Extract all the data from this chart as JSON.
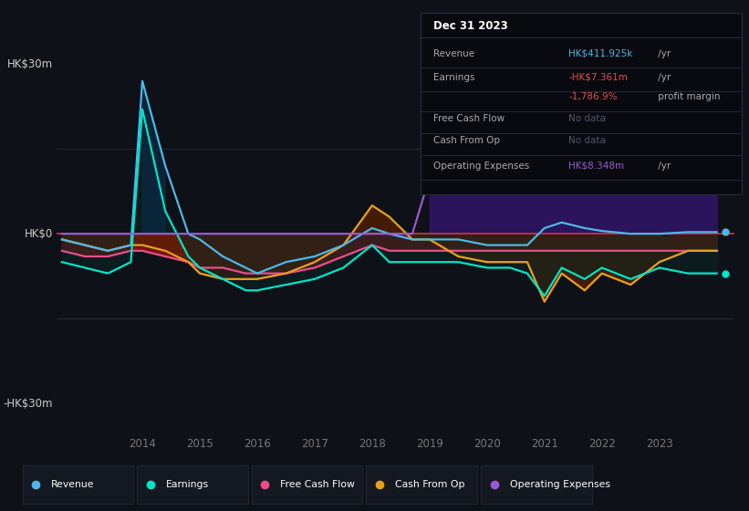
{
  "bg_color": "#0e1117",
  "chart_bg": "#0e1117",
  "grid_color": "#252a35",
  "zero_line_color": "#cc3333",
  "ylim": [
    -35,
    35
  ],
  "xlim": [
    2012.5,
    2024.3
  ],
  "xtick_labels": [
    "2014",
    "2015",
    "2016",
    "2017",
    "2018",
    "2019",
    "2020",
    "2021",
    "2022",
    "2023"
  ],
  "xtick_positions": [
    2014,
    2015,
    2016,
    2017,
    2018,
    2019,
    2020,
    2021,
    2022,
    2023
  ],
  "years": [
    2012.6,
    2013.0,
    2013.4,
    2013.8,
    2014.0,
    2014.4,
    2014.8,
    2015.0,
    2015.4,
    2015.8,
    2016.0,
    2016.5,
    2017.0,
    2017.5,
    2018.0,
    2018.3,
    2018.7,
    2019.0,
    2019.5,
    2020.0,
    2020.4,
    2020.7,
    2021.0,
    2021.3,
    2021.7,
    2022.0,
    2022.5,
    2023.0,
    2023.5,
    2024.0
  ],
  "revenue": [
    -1,
    -2,
    -3,
    -2,
    27,
    12,
    0,
    -1,
    -4,
    -6,
    -7,
    -5,
    -4,
    -2,
    1,
    0,
    -1,
    -1,
    -1,
    -2,
    -2,
    -2,
    1,
    2,
    1,
    0.5,
    0,
    0,
    0.3,
    0.3
  ],
  "earnings": [
    -5,
    -6,
    -7,
    -5,
    22,
    4,
    -4,
    -6,
    -8,
    -10,
    -10,
    -9,
    -8,
    -6,
    -2,
    -5,
    -5,
    -5,
    -5,
    -6,
    -6,
    -7,
    -11,
    -6,
    -8,
    -6,
    -8,
    -6,
    -7,
    -7
  ],
  "free_cash_flow": [
    -3,
    -4,
    -4,
    -3,
    -3,
    -4,
    -5,
    -6,
    -6,
    -7,
    -7,
    -7,
    -6,
    -4,
    -2,
    -3,
    -3,
    -3,
    -3,
    -3,
    -3,
    -3,
    -3,
    -3,
    -3,
    -3,
    -3,
    -3,
    -3,
    -3
  ],
  "cash_from_op": [
    -1,
    -2,
    -3,
    -2,
    -2,
    -3,
    -5,
    -7,
    -8,
    -8,
    -8,
    -7,
    -5,
    -2,
    5,
    3,
    -1,
    -1,
    -4,
    -5,
    -5,
    -5,
    -12,
    -7,
    -10,
    -7,
    -9,
    -5,
    -3,
    -3
  ],
  "operating_expenses": [
    0,
    0,
    0,
    0,
    0,
    0,
    0,
    0,
    0,
    0,
    0,
    0,
    0,
    0,
    0,
    0,
    0,
    10,
    11,
    11,
    10,
    10,
    9,
    10,
    9,
    9,
    9,
    8,
    8,
    8
  ],
  "revenue_color": "#4db8e8",
  "earnings_color": "#00e5c8",
  "fcf_color": "#e84d8a",
  "cashop_color": "#e8a020",
  "opex_color": "#9b59d0",
  "opex_fill": "#2d1560",
  "fcf_fill": "#8b1515",
  "cashop_fill": "#5a2000",
  "earnings_fill": "#0a2525",
  "revenue_pos_fill": "#0a2a45",
  "dark_overlay": "#0e1117",
  "info_bg": "#080a10",
  "info_border": "#2a2d40",
  "legend_bg": "#141820",
  "legend_border": "#252a38",
  "legend_items": [
    {
      "label": "Revenue",
      "color": "#4db8e8"
    },
    {
      "label": "Earnings",
      "color": "#00e5c8"
    },
    {
      "label": "Free Cash Flow",
      "color": "#e84d8a"
    },
    {
      "label": "Cash From Op",
      "color": "#e8a020"
    },
    {
      "label": "Operating Expenses",
      "color": "#9b59d0"
    }
  ],
  "info_title": "Dec 31 2023",
  "info_rows": [
    {
      "label": "Revenue",
      "value": "HK$411.925k",
      "suffix": " /yr",
      "vc": "#4db8e8",
      "extra": ""
    },
    {
      "label": "Earnings",
      "value": "-HK$7.361m",
      "suffix": " /yr",
      "vc": "#e05050",
      "extra": "-1,786.9% profit margin"
    },
    {
      "label": "Free Cash Flow",
      "value": "No data",
      "suffix": "",
      "vc": "#555566",
      "extra": ""
    },
    {
      "label": "Cash From Op",
      "value": "No data",
      "suffix": "",
      "vc": "#555566",
      "extra": ""
    },
    {
      "label": "Operating Expenses",
      "value": "HK$8.348m",
      "suffix": " /yr",
      "vc": "#9b59d0",
      "extra": ""
    }
  ]
}
